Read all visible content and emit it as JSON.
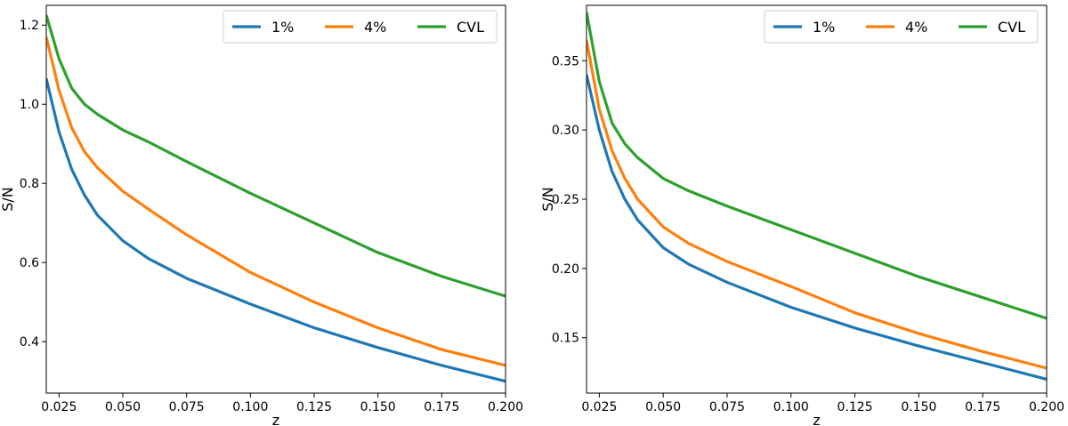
{
  "chart_data": [
    {
      "type": "line",
      "title": "",
      "xlabel": "z",
      "ylabel": "S/N",
      "xlim": [
        0.02,
        0.2
      ],
      "ylim": [
        0.27,
        1.25
      ],
      "xticks": [
        0.025,
        0.05,
        0.075,
        0.1,
        0.125,
        0.15,
        0.175,
        0.2
      ],
      "xtick_labels": [
        "0.025",
        "0.050",
        "0.075",
        "0.100",
        "0.125",
        "0.150",
        "0.175",
        "0.200"
      ],
      "yticks": [
        0.4,
        0.6,
        0.8,
        1.0,
        1.2
      ],
      "ytick_labels": [
        "0.4",
        "0.6",
        "0.8",
        "1.0",
        "1.2"
      ],
      "grid": false,
      "legend": "top-right",
      "series": [
        {
          "name": "1%",
          "color": "#1f77b4",
          "x": [
            0.02,
            0.025,
            0.03,
            0.035,
            0.04,
            0.05,
            0.06,
            0.075,
            0.1,
            0.125,
            0.15,
            0.175,
            0.2
          ],
          "y": [
            1.065,
            0.93,
            0.835,
            0.77,
            0.72,
            0.655,
            0.61,
            0.56,
            0.495,
            0.435,
            0.385,
            0.34,
            0.3
          ]
        },
        {
          "name": "4%",
          "color": "#ff7f0e",
          "x": [
            0.02,
            0.025,
            0.03,
            0.035,
            0.04,
            0.05,
            0.06,
            0.075,
            0.1,
            0.125,
            0.15,
            0.175,
            0.2
          ],
          "y": [
            1.17,
            1.035,
            0.94,
            0.88,
            0.84,
            0.78,
            0.735,
            0.67,
            0.575,
            0.5,
            0.435,
            0.38,
            0.34
          ]
        },
        {
          "name": "CVL",
          "color": "#2ca02c",
          "x": [
            0.02,
            0.025,
            0.03,
            0.035,
            0.04,
            0.05,
            0.06,
            0.075,
            0.1,
            0.125,
            0.15,
            0.175,
            0.2
          ],
          "y": [
            1.225,
            1.115,
            1.04,
            1.0,
            0.975,
            0.935,
            0.905,
            0.855,
            0.775,
            0.7,
            0.625,
            0.565,
            0.515
          ]
        }
      ]
    },
    {
      "type": "line",
      "title": "",
      "xlabel": "z",
      "ylabel": "S/N",
      "xlim": [
        0.02,
        0.2
      ],
      "ylim": [
        0.11,
        0.39
      ],
      "xticks": [
        0.025,
        0.05,
        0.075,
        0.1,
        0.125,
        0.15,
        0.175,
        0.2
      ],
      "xtick_labels": [
        "0.025",
        "0.050",
        "0.075",
        "0.100",
        "0.125",
        "0.150",
        "0.175",
        "0.200"
      ],
      "yticks": [
        0.15,
        0.2,
        0.25,
        0.3,
        0.35
      ],
      "ytick_labels": [
        "0.15",
        "0.20",
        "0.25",
        "0.30",
        "0.35"
      ],
      "grid": false,
      "legend": "top-right",
      "series": [
        {
          "name": "1%",
          "color": "#1f77b4",
          "x": [
            0.02,
            0.025,
            0.03,
            0.035,
            0.04,
            0.05,
            0.06,
            0.075,
            0.1,
            0.125,
            0.15,
            0.175,
            0.2
          ],
          "y": [
            0.34,
            0.3,
            0.27,
            0.25,
            0.235,
            0.215,
            0.203,
            0.19,
            0.172,
            0.157,
            0.144,
            0.132,
            0.12
          ]
        },
        {
          "name": "4%",
          "color": "#ff7f0e",
          "x": [
            0.02,
            0.025,
            0.03,
            0.035,
            0.04,
            0.05,
            0.06,
            0.075,
            0.1,
            0.125,
            0.15,
            0.175,
            0.2
          ],
          "y": [
            0.365,
            0.315,
            0.285,
            0.265,
            0.25,
            0.23,
            0.218,
            0.205,
            0.187,
            0.168,
            0.153,
            0.14,
            0.128
          ]
        },
        {
          "name": "CVL",
          "color": "#2ca02c",
          "x": [
            0.02,
            0.025,
            0.03,
            0.035,
            0.04,
            0.05,
            0.06,
            0.075,
            0.1,
            0.125,
            0.15,
            0.175,
            0.2
          ],
          "y": [
            0.385,
            0.335,
            0.305,
            0.29,
            0.28,
            0.265,
            0.256,
            0.245,
            0.228,
            0.211,
            0.194,
            0.179,
            0.164
          ]
        }
      ]
    }
  ]
}
